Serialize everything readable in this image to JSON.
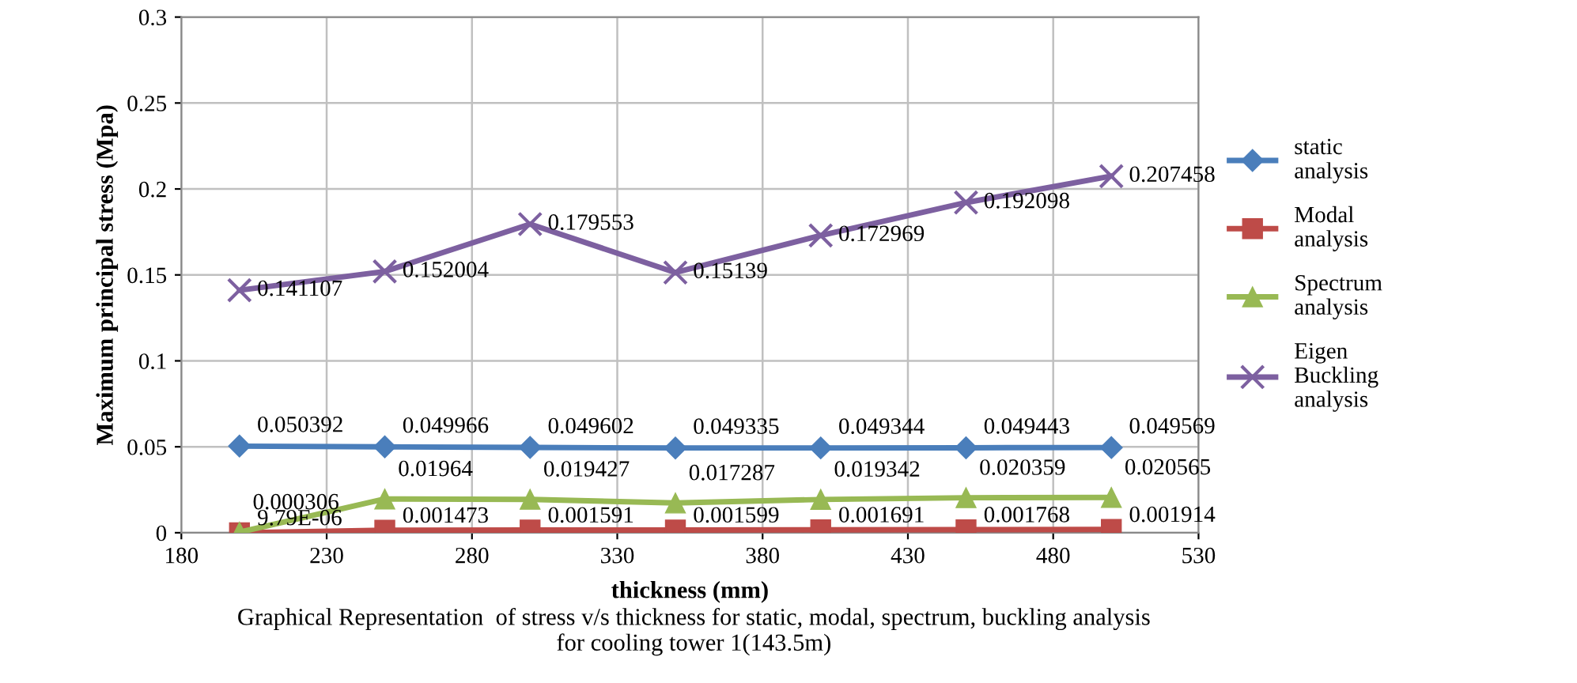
{
  "chart_data": {
    "type": "line",
    "xlabel": "thickness (mm)",
    "ylabel": "Maximum principal stress (Mpa)",
    "x": [
      200,
      250,
      300,
      350,
      400,
      450,
      500
    ],
    "series": [
      {
        "name": "static\nanalysis",
        "color": "#4a7ebb",
        "marker": "diamond",
        "values": [
          0.050392,
          0.049966,
          0.049602,
          0.049335,
          0.049344,
          0.049443,
          0.049569
        ]
      },
      {
        "name": "Modal\nanalysis",
        "color": "#be4b48",
        "marker": "square",
        "values": [
          9.79e-06,
          0.001473,
          0.001591,
          0.001599,
          0.001691,
          0.001768,
          0.001914
        ],
        "value_labels": [
          "9.79E-06",
          "0.001473",
          "0.001591",
          "0.001599",
          "0.001691",
          "0.001768",
          "0.001914"
        ]
      },
      {
        "name": "Spectrum\nanalysis",
        "color": "#98b954",
        "marker": "triangle",
        "values": [
          0.000306,
          0.01964,
          0.019427,
          0.017287,
          0.019342,
          0.020359,
          0.020565
        ]
      },
      {
        "name": "Eigen\nBuckling\nanalysis",
        "color": "#7d60a0",
        "marker": "cross",
        "values": [
          0.141107,
          0.152004,
          0.179553,
          0.15139,
          0.172969,
          0.192098,
          0.207458
        ]
      }
    ],
    "xlim": [
      180,
      530
    ],
    "xticks": [
      180,
      230,
      280,
      330,
      380,
      430,
      480,
      530
    ],
    "ylim": [
      0,
      0.3
    ],
    "yticks": [
      0,
      0.05,
      0.1,
      0.15,
      0.2,
      0.25,
      0.3
    ],
    "grid": true,
    "legend": "right",
    "data_labels": true,
    "line_style": "solid",
    "annotations": [
      "Graphical Representation  of stress v/s thickness for static, modal, spectrum, buckling analysis\nfor cooling tower 1(143.5m)"
    ]
  }
}
